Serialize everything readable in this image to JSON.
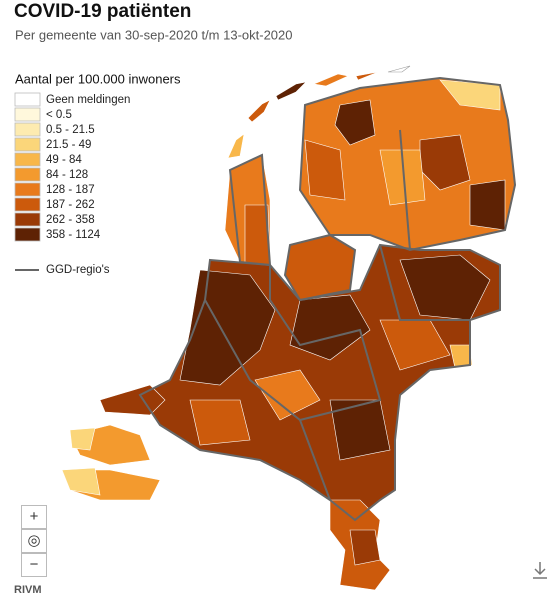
{
  "header": {
    "title": "COVID-19 patiënten",
    "subtitle": "Per gemeente van 30-sep-2020 t/m 13-okt-2020"
  },
  "legend": {
    "title": "Aantal per 100.000 inwoners",
    "items": [
      {
        "label": "Geen meldingen",
        "color": "#ffffff"
      },
      {
        "label": "< 0.5",
        "color": "#fff8dc"
      },
      {
        "label": "0.5 - 21.5",
        "color": "#fdebb0"
      },
      {
        "label": "21.5 - 49",
        "color": "#fbd67a"
      },
      {
        "label": "49 - 84",
        "color": "#f8b74a"
      },
      {
        "label": "84 - 128",
        "color": "#f39a2e"
      },
      {
        "label": "128 - 187",
        "color": "#e87a1c"
      },
      {
        "label": "187 - 262",
        "color": "#cc5a0c"
      },
      {
        "label": "262 - 358",
        "color": "#9a3a06"
      },
      {
        "label": "358 - 1124",
        "color": "#5e2204"
      }
    ],
    "boundary": "GGD-regio's"
  },
  "controls": {
    "zoom_in": "+",
    "reset": "◎",
    "zoom_out": "−"
  },
  "footer": {
    "source": "RIVM"
  }
}
